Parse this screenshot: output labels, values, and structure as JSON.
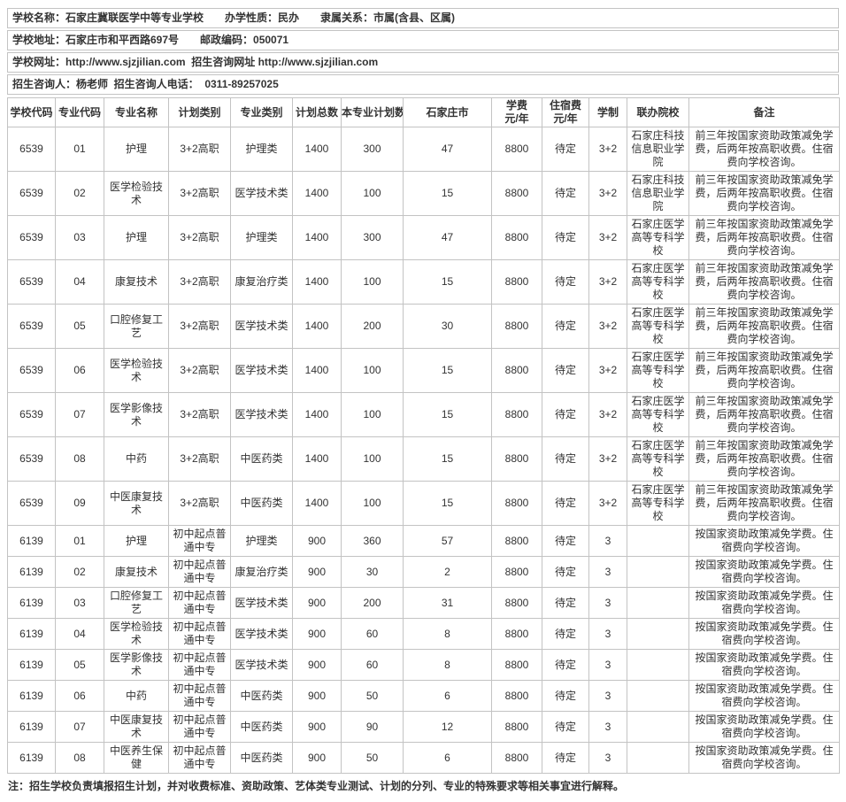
{
  "info_bars": [
    "学校名称：石家庄冀联医学中等专业学校　　办学性质：民办　　隶属关系：市属(含县、区属)",
    "学校地址：石家庄市和平西路697号　　邮政编码：050071",
    "学校网址：http://www.sjzjilian.com  招生咨询网址 http://www.sjzjilian.com",
    "招生咨询人：杨老师  招生咨询人电话：  0311-89257025"
  ],
  "table": {
    "headers": [
      {
        "text": "学校代码"
      },
      {
        "text": "专业代码"
      },
      {
        "text": "专业名称"
      },
      {
        "text": "计划类别"
      },
      {
        "text": "专业类别"
      },
      {
        "text": "计划总数"
      },
      {
        "text": "本专业计划数"
      },
      {
        "text": "石家庄市"
      },
      {
        "text": "学费",
        "sub": "元/年"
      },
      {
        "text": "住宿费",
        "sub": "元/年"
      },
      {
        "text": "学制"
      },
      {
        "text": "联办院校"
      },
      {
        "text": "备注"
      }
    ],
    "rows": [
      {
        "school_code": "6539",
        "major_code": "01",
        "major_name": "护理",
        "plan_type": "3+2高职",
        "major_type": "护理类",
        "plan_total": "1400",
        "major_plan": "300",
        "sjz": "47",
        "tuition": "8800",
        "accommodation": "待定",
        "duration": "3+2",
        "partner": "石家庄科技信息职业学院",
        "remark": "前三年按国家资助政策减免学费，后两年按高职收费。住宿费向学校咨询。"
      },
      {
        "school_code": "6539",
        "major_code": "02",
        "major_name": "医学检验技术",
        "plan_type": "3+2高职",
        "major_type": "医学技术类",
        "plan_total": "1400",
        "major_plan": "100",
        "sjz": "15",
        "tuition": "8800",
        "accommodation": "待定",
        "duration": "3+2",
        "partner": "石家庄科技信息职业学院",
        "remark": "前三年按国家资助政策减免学费，后两年按高职收费。住宿费向学校咨询。"
      },
      {
        "school_code": "6539",
        "major_code": "03",
        "major_name": "护理",
        "plan_type": "3+2高职",
        "major_type": "护理类",
        "plan_total": "1400",
        "major_plan": "300",
        "sjz": "47",
        "tuition": "8800",
        "accommodation": "待定",
        "duration": "3+2",
        "partner": "石家庄医学高等专科学校",
        "remark": "前三年按国家资助政策减免学费，后两年按高职收费。住宿费向学校咨询。"
      },
      {
        "school_code": "6539",
        "major_code": "04",
        "major_name": "康复技术",
        "plan_type": "3+2高职",
        "major_type": "康复治疗类",
        "plan_total": "1400",
        "major_plan": "100",
        "sjz": "15",
        "tuition": "8800",
        "accommodation": "待定",
        "duration": "3+2",
        "partner": "石家庄医学高等专科学校",
        "remark": "前三年按国家资助政策减免学费，后两年按高职收费。住宿费向学校咨询。"
      },
      {
        "school_code": "6539",
        "major_code": "05",
        "major_name": "口腔修复工艺",
        "plan_type": "3+2高职",
        "major_type": "医学技术类",
        "plan_total": "1400",
        "major_plan": "200",
        "sjz": "30",
        "tuition": "8800",
        "accommodation": "待定",
        "duration": "3+2",
        "partner": "石家庄医学高等专科学校",
        "remark": "前三年按国家资助政策减免学费，后两年按高职收费。住宿费向学校咨询。"
      },
      {
        "school_code": "6539",
        "major_code": "06",
        "major_name": "医学检验技术",
        "plan_type": "3+2高职",
        "major_type": "医学技术类",
        "plan_total": "1400",
        "major_plan": "100",
        "sjz": "15",
        "tuition": "8800",
        "accommodation": "待定",
        "duration": "3+2",
        "partner": "石家庄医学高等专科学校",
        "remark": "前三年按国家资助政策减免学费，后两年按高职收费。住宿费向学校咨询。"
      },
      {
        "school_code": "6539",
        "major_code": "07",
        "major_name": "医学影像技术",
        "plan_type": "3+2高职",
        "major_type": "医学技术类",
        "plan_total": "1400",
        "major_plan": "100",
        "sjz": "15",
        "tuition": "8800",
        "accommodation": "待定",
        "duration": "3+2",
        "partner": "石家庄医学高等专科学校",
        "remark": "前三年按国家资助政策减免学费，后两年按高职收费。住宿费向学校咨询。"
      },
      {
        "school_code": "6539",
        "major_code": "08",
        "major_name": "中药",
        "plan_type": "3+2高职",
        "major_type": "中医药类",
        "plan_total": "1400",
        "major_plan": "100",
        "sjz": "15",
        "tuition": "8800",
        "accommodation": "待定",
        "duration": "3+2",
        "partner": "石家庄医学高等专科学校",
        "remark": "前三年按国家资助政策减免学费，后两年按高职收费。住宿费向学校咨询。"
      },
      {
        "school_code": "6539",
        "major_code": "09",
        "major_name": "中医康复技术",
        "plan_type": "3+2高职",
        "major_type": "中医药类",
        "plan_total": "1400",
        "major_plan": "100",
        "sjz": "15",
        "tuition": "8800",
        "accommodation": "待定",
        "duration": "3+2",
        "partner": "石家庄医学高等专科学校",
        "remark": "前三年按国家资助政策减免学费，后两年按高职收费。住宿费向学校咨询。"
      },
      {
        "school_code": "6139",
        "major_code": "01",
        "major_name": "护理",
        "plan_type": "初中起点普通中专",
        "major_type": "护理类",
        "plan_total": "900",
        "major_plan": "360",
        "sjz": "57",
        "tuition": "8800",
        "accommodation": "待定",
        "duration": "3",
        "partner": "",
        "remark": "按国家资助政策减免学费。住宿费向学校咨询。"
      },
      {
        "school_code": "6139",
        "major_code": "02",
        "major_name": "康复技术",
        "plan_type": "初中起点普通中专",
        "major_type": "康复治疗类",
        "plan_total": "900",
        "major_plan": "30",
        "sjz": "2",
        "tuition": "8800",
        "accommodation": "待定",
        "duration": "3",
        "partner": "",
        "remark": "按国家资助政策减免学费。住宿费向学校咨询。"
      },
      {
        "school_code": "6139",
        "major_code": "03",
        "major_name": "口腔修复工艺",
        "plan_type": "初中起点普通中专",
        "major_type": "医学技术类",
        "plan_total": "900",
        "major_plan": "200",
        "sjz": "31",
        "tuition": "8800",
        "accommodation": "待定",
        "duration": "3",
        "partner": "",
        "remark": "按国家资助政策减免学费。住宿费向学校咨询。"
      },
      {
        "school_code": "6139",
        "major_code": "04",
        "major_name": "医学检验技术",
        "plan_type": "初中起点普通中专",
        "major_type": "医学技术类",
        "plan_total": "900",
        "major_plan": "60",
        "sjz": "8",
        "tuition": "8800",
        "accommodation": "待定",
        "duration": "3",
        "partner": "",
        "remark": "按国家资助政策减免学费。住宿费向学校咨询。"
      },
      {
        "school_code": "6139",
        "major_code": "05",
        "major_name": "医学影像技术",
        "plan_type": "初中起点普通中专",
        "major_type": "医学技术类",
        "plan_total": "900",
        "major_plan": "60",
        "sjz": "8",
        "tuition": "8800",
        "accommodation": "待定",
        "duration": "3",
        "partner": "",
        "remark": "按国家资助政策减免学费。住宿费向学校咨询。"
      },
      {
        "school_code": "6139",
        "major_code": "06",
        "major_name": "中药",
        "plan_type": "初中起点普通中专",
        "major_type": "中医药类",
        "plan_total": "900",
        "major_plan": "50",
        "sjz": "6",
        "tuition": "8800",
        "accommodation": "待定",
        "duration": "3",
        "partner": "",
        "remark": "按国家资助政策减免学费。住宿费向学校咨询。"
      },
      {
        "school_code": "6139",
        "major_code": "07",
        "major_name": "中医康复技术",
        "plan_type": "初中起点普通中专",
        "major_type": "中医药类",
        "plan_total": "900",
        "major_plan": "90",
        "sjz": "12",
        "tuition": "8800",
        "accommodation": "待定",
        "duration": "3",
        "partner": "",
        "remark": "按国家资助政策减免学费。住宿费向学校咨询。"
      },
      {
        "school_code": "6139",
        "major_code": "08",
        "major_name": "中医养生保健",
        "plan_type": "初中起点普通中专",
        "major_type": "中医药类",
        "plan_total": "900",
        "major_plan": "50",
        "sjz": "6",
        "tuition": "8800",
        "accommodation": "待定",
        "duration": "3",
        "partner": "",
        "remark": "按国家资助政策减免学费。住宿费向学校咨询。"
      }
    ]
  },
  "note": "注：招生学校负责填报招生计划，并对收费标准、资助政策、艺体类专业测试、计划的分列、专业的特殊要求等相关事宜进行解释。"
}
